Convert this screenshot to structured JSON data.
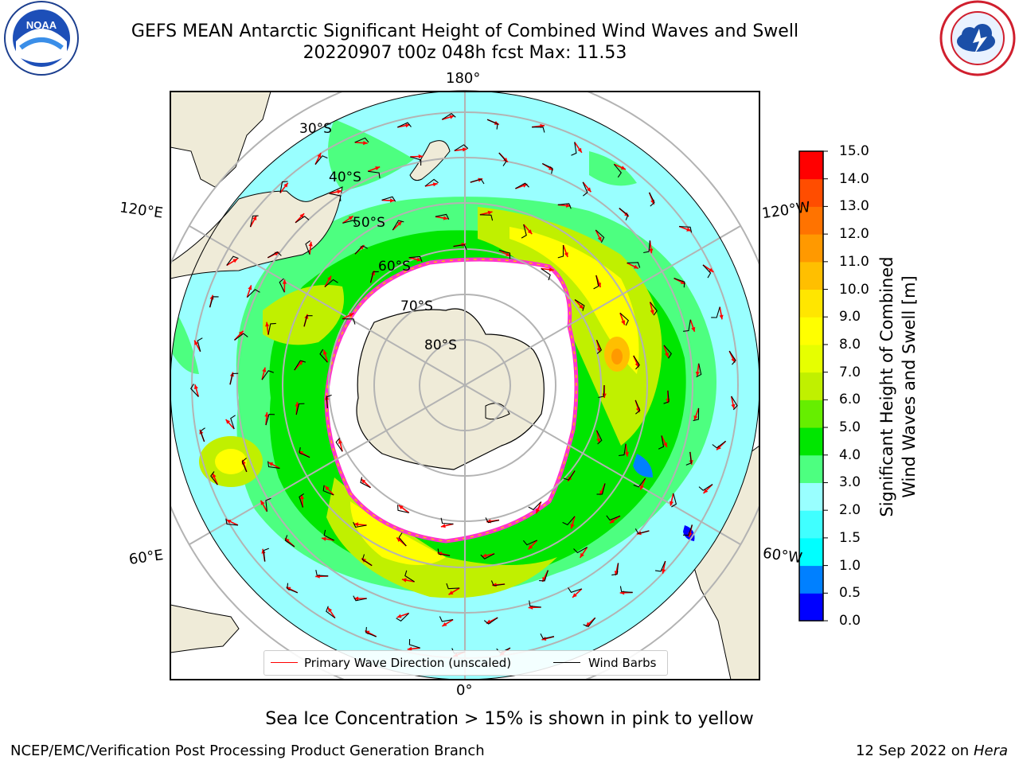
{
  "header": {
    "title_line1": "GEFS MEAN Antarctic Significant Height of Combined Wind Waves and Swell",
    "title_line2": "20220907 t00z 048h fcst   Max: 11.53"
  },
  "map": {
    "longitude_labels": [
      "180°",
      "120°E",
      "120°W",
      "60°E",
      "60°W",
      "0°"
    ],
    "latitude_labels": [
      "30°S",
      "40°S",
      "50°S",
      "60°S",
      "70°S",
      "80°S"
    ],
    "colors": {
      "land": "#efebd8",
      "ice": "#ffffff",
      "ice_edge": "#ff33cc",
      "wave_arrow": "#ff0000",
      "barb": "#000000",
      "grid": "#b3b3b3"
    }
  },
  "legend": {
    "wave_label": "Primary Wave Direction (unscaled)",
    "barb_label": "Wind Barbs"
  },
  "colorbar": {
    "label_line1": "Significant Height of Combined",
    "label_line2": "Wind Waves and Swell [m]",
    "ticks": [
      "15.0",
      "14.0",
      "13.0",
      "12.0",
      "11.0",
      "10.0",
      "9.0",
      "8.0",
      "7.0",
      "6.0",
      "5.0",
      "4.0",
      "3.0",
      "2.0",
      "1.5",
      "1.0",
      "0.5",
      "0.0"
    ],
    "colors": [
      "#0000ff",
      "#0080ff",
      "#00ffff",
      "#40ffff",
      "#99ffff",
      "#4dff80",
      "#00e600",
      "#66ee00",
      "#c0f000",
      "#e6ff00",
      "#ffff00",
      "#ffe600",
      "#ffbf00",
      "#ff9900",
      "#ff7300",
      "#ff4d00",
      "#ff0000"
    ]
  },
  "caption": "Sea Ice Concentration > 15% is shown in pink to yellow",
  "footer": {
    "left": "NCEP/EMC/Verification Post Processing Product Generation Branch",
    "right_date": "12 Sep 2022 on",
    "right_host": "Hera"
  }
}
